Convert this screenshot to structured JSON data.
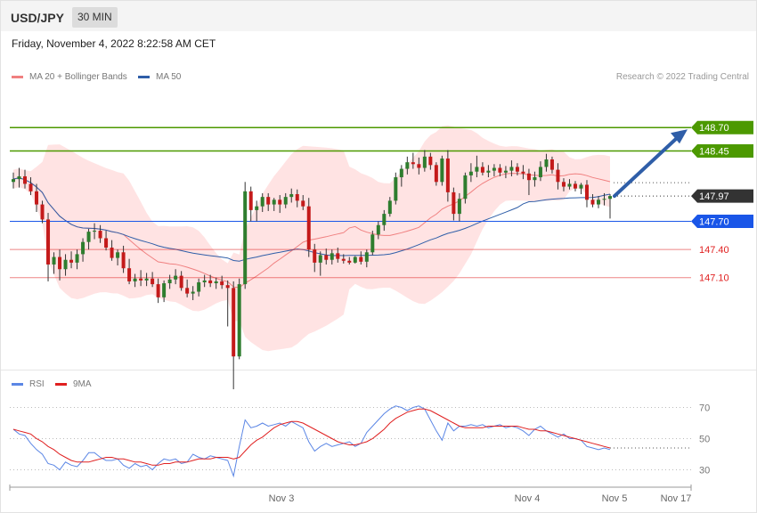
{
  "header": {
    "symbol": "USD/JPY",
    "timeframe": "30 MIN",
    "datetime": "Friday, November 4, 2022 8:22:58 AM CET"
  },
  "legend": {
    "ma20": {
      "label": "MA 20 + Bollinger Bands",
      "color": "#f08080"
    },
    "ma50": {
      "label": "MA 50",
      "color": "#2f5ea8"
    },
    "credit": "Research © 2022 Trading Central"
  },
  "rsi_legend": {
    "rsi": {
      "label": "RSI",
      "color": "#5b86e5"
    },
    "ma9": {
      "label": "9MA",
      "color": "#e02020"
    }
  },
  "chart_data": [
    {
      "type": "candlestick",
      "ylim": [
        146.11,
        149.49
      ],
      "levels": [
        {
          "value": 148.7,
          "label": "148.70",
          "kind": "resistance",
          "color": "#4c9900"
        },
        {
          "value": 148.45,
          "label": "148.45",
          "kind": "resistance",
          "color": "#4c9900"
        },
        {
          "value": 147.97,
          "label": "147.97",
          "kind": "last",
          "color": "#333333"
        },
        {
          "value": 147.7,
          "label": "147.70",
          "kind": "pivot",
          "color": "#1a56e8"
        },
        {
          "value": 147.4,
          "label": "147.40",
          "kind": "support",
          "color": "#e02020"
        },
        {
          "value": 147.1,
          "label": "147.10",
          "kind": "support",
          "color": "#e02020"
        }
      ],
      "candles": [
        [
          148.12,
          148.22,
          148.05,
          148.15
        ],
        [
          148.15,
          148.27,
          148.06,
          148.18
        ],
        [
          148.18,
          148.25,
          148.05,
          148.1
        ],
        [
          148.1,
          148.17,
          147.98,
          148.02
        ],
        [
          148.02,
          148.1,
          147.8,
          147.88
        ],
        [
          147.88,
          147.92,
          147.68,
          147.72
        ],
        [
          147.72,
          147.79,
          147.06,
          147.24
        ],
        [
          147.24,
          147.37,
          147.14,
          147.32
        ],
        [
          147.32,
          147.4,
          147.07,
          147.19
        ],
        [
          147.19,
          147.35,
          147.12,
          147.29
        ],
        [
          147.29,
          147.38,
          147.2,
          147.26
        ],
        [
          147.26,
          147.4,
          147.19,
          147.35
        ],
        [
          147.35,
          147.52,
          147.27,
          147.48
        ],
        [
          147.48,
          147.62,
          147.4,
          147.59
        ],
        [
          147.59,
          147.68,
          147.51,
          147.6
        ],
        [
          147.6,
          147.66,
          147.47,
          147.52
        ],
        [
          147.52,
          147.6,
          147.39,
          147.42
        ],
        [
          147.42,
          147.5,
          147.28,
          147.31
        ],
        [
          147.31,
          147.4,
          147.23,
          147.37
        ],
        [
          147.37,
          147.44,
          147.15,
          147.2
        ],
        [
          147.2,
          147.3,
          147.03,
          147.06
        ],
        [
          147.06,
          147.14,
          147.0,
          147.09
        ],
        [
          147.09,
          147.18,
          147.01,
          147.07
        ],
        [
          147.07,
          147.15,
          147.01,
          147.09
        ],
        [
          147.09,
          147.16,
          147.0,
          147.03
        ],
        [
          147.03,
          147.09,
          146.83,
          146.89
        ],
        [
          146.89,
          147.07,
          146.84,
          147.04
        ],
        [
          147.04,
          147.13,
          146.98,
          147.08
        ],
        [
          147.08,
          147.19,
          147.03,
          147.12
        ],
        [
          147.12,
          147.17,
          146.96,
          146.99
        ],
        [
          146.99,
          147.08,
          146.89,
          146.93
        ],
        [
          146.93,
          147.01,
          146.86,
          146.95
        ],
        [
          146.95,
          147.09,
          146.9,
          147.05
        ],
        [
          147.05,
          147.13,
          147.0,
          147.07
        ],
        [
          147.07,
          147.13,
          147.0,
          147.04
        ],
        [
          147.04,
          147.1,
          146.98,
          147.06
        ],
        [
          147.06,
          147.12,
          146.98,
          147.02
        ],
        [
          147.02,
          147.07,
          146.58,
          146.99
        ],
        [
          146.99,
          147.06,
          145.91,
          146.26
        ],
        [
          146.26,
          147.09,
          146.23,
          147.03
        ],
        [
          147.03,
          148.12,
          146.98,
          148.02
        ],
        [
          148.02,
          148.07,
          147.7,
          147.82
        ],
        [
          147.82,
          147.92,
          147.7,
          147.86
        ],
        [
          147.86,
          148.0,
          147.8,
          147.96
        ],
        [
          147.96,
          148.0,
          147.81,
          147.88
        ],
        [
          147.88,
          147.95,
          147.81,
          147.93
        ],
        [
          147.93,
          147.98,
          147.79,
          147.88
        ],
        [
          147.88,
          148.0,
          147.84,
          147.96
        ],
        [
          147.96,
          148.05,
          147.9,
          147.99
        ],
        [
          147.99,
          148.04,
          147.85,
          147.92
        ],
        [
          147.92,
          147.98,
          147.82,
          147.86
        ],
        [
          147.86,
          147.95,
          147.32,
          147.4
        ],
        [
          147.4,
          147.46,
          147.16,
          147.26
        ],
        [
          147.26,
          147.38,
          147.12,
          147.34
        ],
        [
          147.34,
          147.41,
          147.24,
          147.29
        ],
        [
          147.29,
          147.4,
          147.24,
          147.36
        ],
        [
          147.36,
          147.42,
          147.26,
          147.3
        ],
        [
          147.3,
          147.35,
          147.25,
          147.28
        ],
        [
          147.28,
          147.32,
          147.24,
          147.26
        ],
        [
          147.26,
          147.33,
          147.25,
          147.32
        ],
        [
          147.32,
          147.38,
          147.24,
          147.27
        ],
        [
          147.27,
          147.4,
          147.21,
          147.37
        ],
        [
          147.37,
          147.6,
          147.34,
          147.56
        ],
        [
          147.56,
          147.7,
          147.51,
          147.66
        ],
        [
          147.66,
          147.82,
          147.6,
          147.78
        ],
        [
          147.78,
          147.96,
          147.75,
          147.92
        ],
        [
          147.92,
          148.22,
          147.88,
          148.17
        ],
        [
          148.17,
          148.3,
          148.07,
          148.26
        ],
        [
          148.26,
          148.39,
          148.2,
          148.33
        ],
        [
          148.33,
          148.43,
          148.26,
          148.31
        ],
        [
          148.31,
          148.38,
          148.2,
          148.27
        ],
        [
          148.27,
          148.46,
          148.23,
          148.39
        ],
        [
          148.39,
          148.43,
          148.25,
          148.3
        ],
        [
          148.3,
          148.33,
          148.08,
          148.12
        ],
        [
          148.12,
          148.4,
          148.08,
          148.37
        ],
        [
          148.37,
          148.46,
          147.91,
          148.01
        ],
        [
          148.01,
          148.06,
          147.71,
          147.78
        ],
        [
          147.78,
          148.0,
          147.7,
          147.94
        ],
        [
          147.94,
          148.22,
          147.89,
          148.19
        ],
        [
          148.19,
          148.32,
          148.12,
          148.23
        ],
        [
          148.23,
          148.4,
          148.17,
          148.28
        ],
        [
          148.28,
          148.33,
          148.19,
          148.22
        ],
        [
          148.22,
          148.3,
          148.17,
          148.24
        ],
        [
          148.24,
          148.31,
          148.18,
          148.27
        ],
        [
          148.27,
          148.31,
          148.18,
          148.22
        ],
        [
          148.22,
          148.29,
          148.16,
          148.24
        ],
        [
          148.24,
          148.35,
          148.18,
          148.28
        ],
        [
          148.28,
          148.32,
          148.19,
          148.23
        ],
        [
          148.23,
          148.3,
          148.15,
          148.21
        ],
        [
          148.21,
          148.26,
          147.98,
          148.14
        ],
        [
          148.14,
          148.23,
          148.07,
          148.17
        ],
        [
          148.17,
          148.34,
          148.13,
          148.28
        ],
        [
          148.28,
          148.42,
          148.23,
          148.36
        ],
        [
          148.36,
          148.39,
          148.21,
          148.25
        ],
        [
          148.25,
          148.32,
          148.04,
          148.12
        ],
        [
          148.12,
          148.16,
          148.02,
          148.07
        ],
        [
          148.07,
          148.15,
          148.04,
          148.1
        ],
        [
          148.1,
          148.13,
          148.02,
          148.05
        ],
        [
          148.05,
          148.11,
          147.99,
          148.09
        ],
        [
          148.09,
          148.14,
          147.85,
          147.93
        ],
        [
          147.93,
          147.99,
          147.85,
          147.88
        ],
        [
          147.88,
          147.97,
          147.84,
          147.93
        ],
        [
          147.93,
          148.0,
          147.87,
          147.94
        ],
        [
          147.94,
          147.99,
          147.73,
          147.97
        ]
      ]
    },
    {
      "type": "line",
      "ylim": [
        20,
        80
      ],
      "levels": [
        {
          "value": 70,
          "label": "70"
        },
        {
          "value": 50,
          "label": "50"
        },
        {
          "value": 30,
          "label": "30"
        }
      ],
      "series": [
        {
          "name": "RSI",
          "values": [
            56,
            53,
            52,
            47,
            43,
            40,
            34,
            33,
            30,
            35,
            33,
            32,
            36,
            41,
            41,
            38,
            36,
            36,
            37,
            33,
            31,
            34,
            32,
            33,
            30,
            34,
            37,
            36,
            37,
            34,
            35,
            40,
            38,
            37,
            39,
            38,
            37,
            36,
            26,
            45,
            62,
            57,
            58,
            60,
            58,
            59,
            60,
            58,
            61,
            59,
            57,
            48,
            42,
            45,
            47,
            45,
            46,
            47,
            48,
            45,
            47,
            54,
            58,
            62,
            66,
            69,
            71,
            70,
            68,
            70,
            71,
            69,
            62,
            55,
            49,
            60,
            55,
            58,
            58,
            59,
            58,
            59,
            57,
            58,
            59,
            57,
            58,
            57,
            55,
            52,
            56,
            58,
            55,
            53,
            51,
            53,
            50,
            50,
            49,
            45,
            44,
            43,
            44,
            43
          ]
        },
        {
          "name": "9MA",
          "values": [
            56,
            55,
            54,
            53,
            50,
            48,
            45,
            43,
            40,
            38,
            36,
            35,
            35,
            35,
            36,
            37,
            38,
            38,
            37,
            37,
            36,
            35,
            35,
            34,
            33,
            33,
            34,
            34,
            35,
            35,
            35,
            36,
            37,
            37,
            37,
            38,
            38,
            38,
            37,
            38,
            42,
            46,
            49,
            51,
            54,
            57,
            59,
            60,
            61,
            61,
            60,
            58,
            56,
            54,
            52,
            50,
            48,
            47,
            46,
            46,
            47,
            48,
            50,
            53,
            56,
            60,
            63,
            65,
            67,
            68,
            69,
            69,
            68,
            66,
            64,
            62,
            60,
            58,
            57,
            57,
            57,
            57,
            58,
            58,
            58,
            58,
            58,
            58,
            57,
            56,
            56,
            55,
            55,
            54,
            53,
            52,
            51,
            50,
            49,
            48,
            47,
            46,
            45,
            44
          ]
        }
      ]
    }
  ],
  "x_axis": {
    "labels": [
      "Nov 3",
      "Nov 4",
      "Nov 5",
      "Nov 17"
    ]
  }
}
